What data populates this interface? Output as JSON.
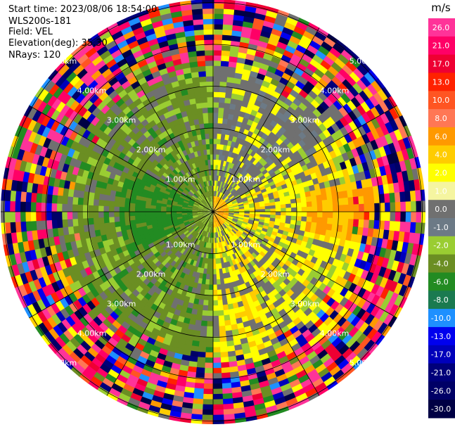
{
  "info": {
    "start_time": "Start time: 2023/08/06 18:54:00",
    "instrument": "WLS200s-181",
    "field": "Field: VEL",
    "elevation": "Elevation(deg): 35.30",
    "nrays": "NRays: 120"
  },
  "colorbar": {
    "unit": "m/s",
    "ticks": [
      "26.0",
      "21.0",
      "17.0",
      "13.0",
      "10.0",
      "8.0",
      "6.0",
      "4.0",
      "2.0",
      "1.0",
      "0.0",
      "-1.0",
      "-2.0",
      "-4.0",
      "-6.0",
      "-8.0",
      "-10.0",
      "-13.0",
      "-17.0",
      "-21.0",
      "-26.0",
      "-30.0"
    ],
    "colors": [
      "#ff3399",
      "#ff0066",
      "#ee0033",
      "#ff2200",
      "#ff5522",
      "#ff7755",
      "#ff9900",
      "#ffcc00",
      "#ffff00",
      "#f5f5a0",
      "#707070",
      "#6c7a86",
      "#9acd32",
      "#6b8e23",
      "#228b22",
      "#1a7a50",
      "#1e90ff",
      "#0000ee",
      "#0000bb",
      "#00007a",
      "#000066",
      "#000044"
    ]
  },
  "chart_data": {
    "type": "heatmap",
    "title": "",
    "field": "VEL",
    "units": "m/s",
    "nrays": 120,
    "range_rings_km": [
      1.0,
      2.0,
      3.0,
      4.0,
      5.0
    ],
    "ring_labels": [
      "1.00km",
      "2.00km",
      "3.00km",
      "4.00km",
      "5.00km"
    ],
    "max_range_km": 5.0,
    "radial_lines_deg": [
      0,
      30,
      60,
      90,
      120,
      150,
      180,
      210,
      240,
      270,
      300,
      330
    ],
    "sectors": [
      {
        "azimuth_deg": [
          0,
          180
        ],
        "inner_km_range": [
          0,
          2.6
        ],
        "dominant_velocity_ms": [
          0.0,
          2.0
        ]
      },
      {
        "azimuth_deg": [
          180,
          360
        ],
        "inner_km_range": [
          0,
          2.6
        ],
        "dominant_velocity_ms": [
          -6.0,
          -1.0
        ]
      },
      {
        "azimuth_deg": [
          0,
          360
        ],
        "outer_km_range": [
          3.2,
          5.5
        ],
        "dominant_velocity_ms": "noise (-30 to 26)"
      }
    ]
  }
}
